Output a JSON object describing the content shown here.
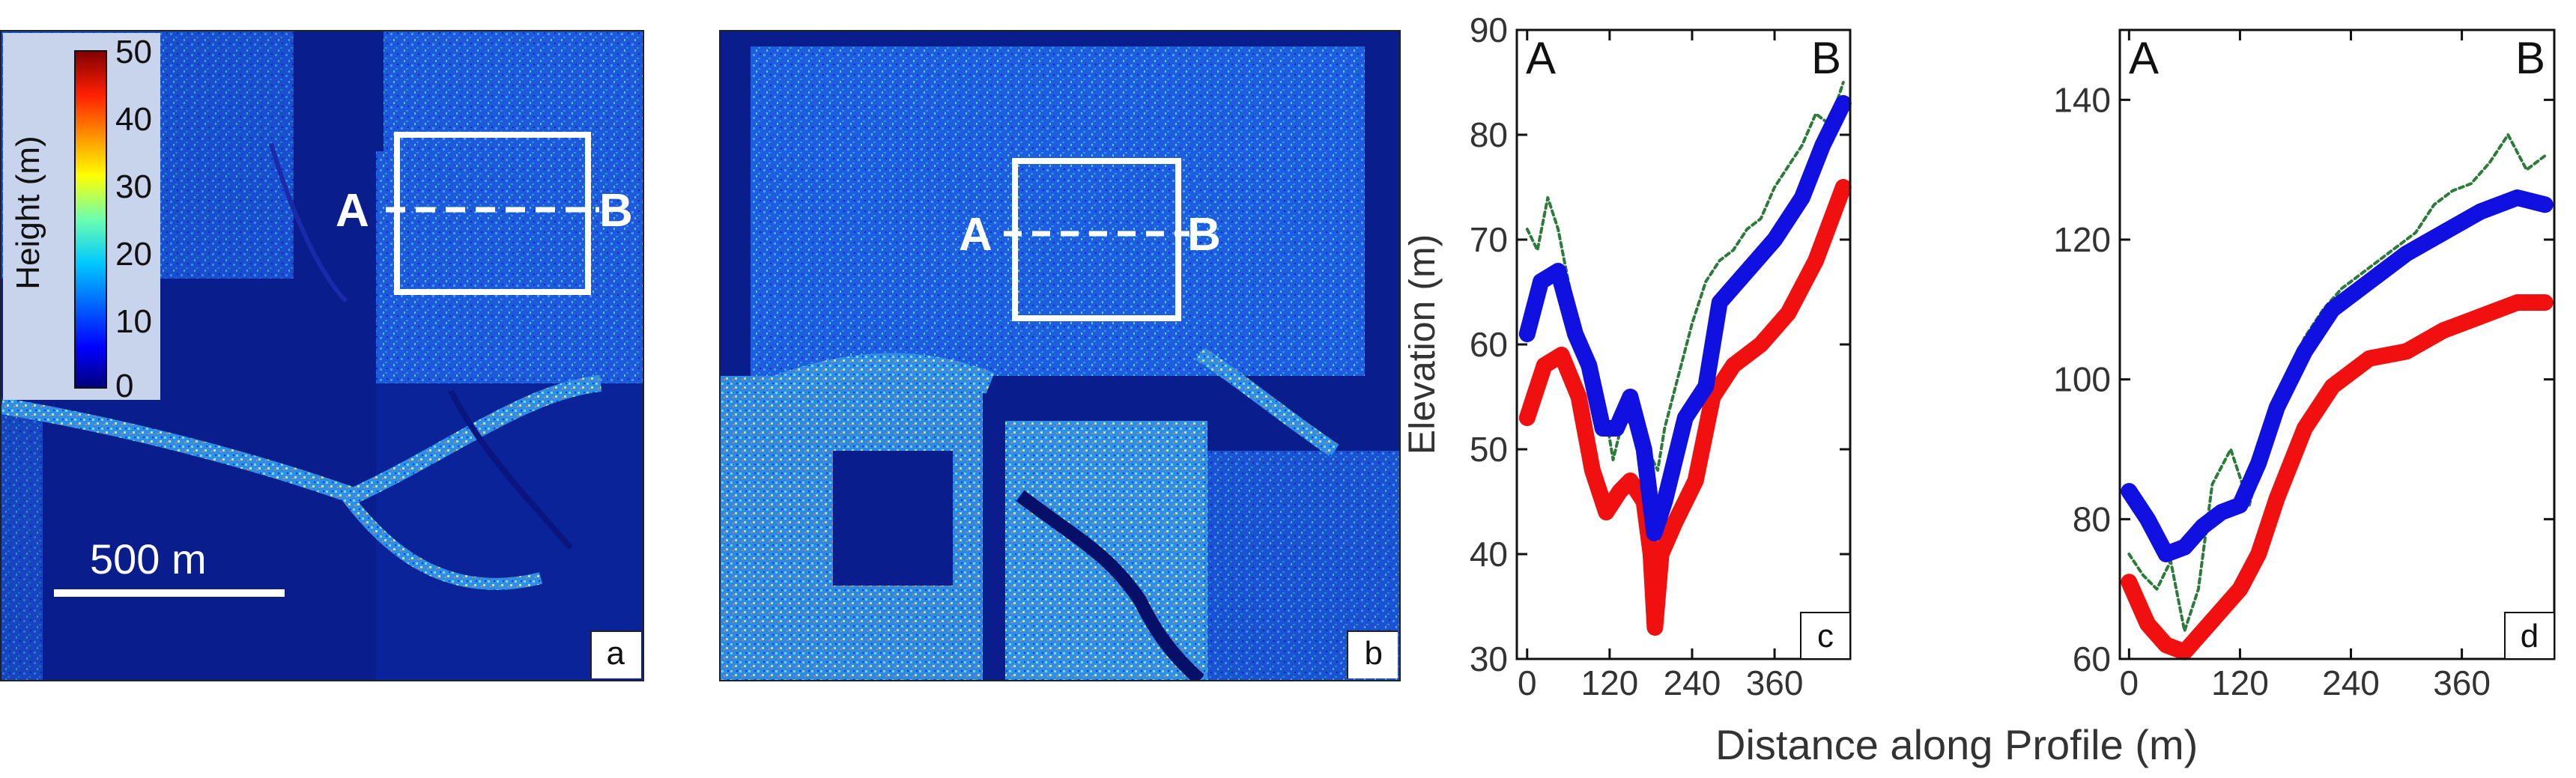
{
  "figure": {
    "panel_labels": [
      "a",
      "b",
      "c",
      "d"
    ],
    "shared_xlabel": "Distance along Profile (m)"
  },
  "map_a": {
    "colorbar": {
      "label": "Height (m)",
      "ticks": [
        "0",
        "10",
        "20",
        "30",
        "40",
        "50"
      ],
      "min": 0,
      "max": 50
    },
    "scalebar_label": "500 m",
    "profile_start": "A",
    "profile_end": "B"
  },
  "map_b": {
    "profile_start": "A",
    "profile_end": "B"
  },
  "colors": {
    "blue_series": "#1010e0",
    "red_series": "#f01010",
    "green_series": "#2d7a3a",
    "map_background": "#0a1d8c"
  },
  "chart_data": [
    {
      "panel": "c",
      "type": "line",
      "xlabel": "Distance along Profile (m)",
      "ylabel": "Elevation (m)",
      "xlim": [
        -15,
        470
      ],
      "ylim": [
        30,
        90
      ],
      "xticks": [
        0,
        120,
        240,
        360
      ],
      "yticks": [
        30,
        40,
        50,
        60,
        70,
        80,
        90
      ],
      "corner_labels": {
        "left": "A",
        "right": "B"
      },
      "series": [
        {
          "name": "blue",
          "color": "#1010e0",
          "x": [
            0,
            20,
            45,
            70,
            90,
            110,
            130,
            150,
            170,
            185,
            200,
            230,
            260,
            280,
            320,
            360,
            400,
            430,
            460
          ],
          "y": [
            61,
            66,
            67,
            61,
            58,
            52,
            52,
            55,
            50,
            42,
            45,
            53,
            56,
            64,
            67,
            70,
            74,
            79,
            83
          ]
        },
        {
          "name": "red",
          "color": "#f01010",
          "x": [
            0,
            25,
            50,
            75,
            95,
            115,
            135,
            150,
            170,
            180,
            186,
            195,
            215,
            245,
            270,
            300,
            340,
            380,
            420,
            460
          ],
          "y": [
            53,
            58,
            59,
            55,
            48,
            44,
            46,
            47,
            45,
            40,
            33,
            40,
            43,
            47,
            55,
            58,
            60,
            63,
            68,
            75
          ]
        },
        {
          "name": "green",
          "color": "#2d7a3a",
          "x": [
            0,
            15,
            30,
            45,
            60,
            75,
            90,
            110,
            125,
            140,
            160,
            175,
            190,
            200,
            220,
            240,
            260,
            280,
            300,
            320,
            340,
            360,
            380,
            400,
            420,
            440,
            460
          ],
          "y": [
            71,
            69,
            74,
            71,
            66,
            61,
            57,
            55,
            49,
            53,
            52,
            50,
            48,
            52,
            57,
            62,
            66,
            68,
            69,
            71,
            72,
            75,
            77,
            79,
            82,
            81,
            85
          ]
        }
      ]
    },
    {
      "panel": "d",
      "type": "line",
      "xlabel": "Distance along Profile (m)",
      "ylabel": "",
      "xlim": [
        -10,
        460
      ],
      "ylim": [
        60,
        150
      ],
      "xticks": [
        0,
        120,
        240,
        360
      ],
      "yticks": [
        60,
        80,
        100,
        120,
        140
      ],
      "corner_labels": {
        "left": "A",
        "right": "B"
      },
      "series": [
        {
          "name": "blue",
          "color": "#1010e0",
          "x": [
            0,
            20,
            40,
            60,
            80,
            100,
            120,
            140,
            160,
            190,
            220,
            260,
            300,
            340,
            380,
            420,
            450
          ],
          "y": [
            84,
            80,
            75,
            76,
            79,
            81,
            82,
            88,
            96,
            104,
            110,
            114,
            118,
            121,
            124,
            126,
            125
          ]
        },
        {
          "name": "red",
          "color": "#f01010",
          "x": [
            0,
            20,
            40,
            60,
            80,
            100,
            120,
            140,
            160,
            190,
            220,
            260,
            300,
            340,
            380,
            420,
            450
          ],
          "y": [
            71,
            65,
            62,
            61,
            64,
            67,
            70,
            75,
            83,
            93,
            99,
            103,
            104,
            107,
            109,
            111,
            111
          ]
        },
        {
          "name": "green",
          "color": "#2d7a3a",
          "x": [
            0,
            15,
            30,
            45,
            60,
            75,
            90,
            110,
            130,
            150,
            170,
            190,
            210,
            230,
            250,
            270,
            290,
            310,
            330,
            350,
            370,
            390,
            410,
            430,
            450
          ],
          "y": [
            75,
            72,
            70,
            74,
            64,
            70,
            85,
            90,
            82,
            92,
            100,
            106,
            110,
            113,
            115,
            117,
            119,
            121,
            125,
            127,
            128,
            131,
            135,
            130,
            132
          ]
        }
      ]
    }
  ]
}
